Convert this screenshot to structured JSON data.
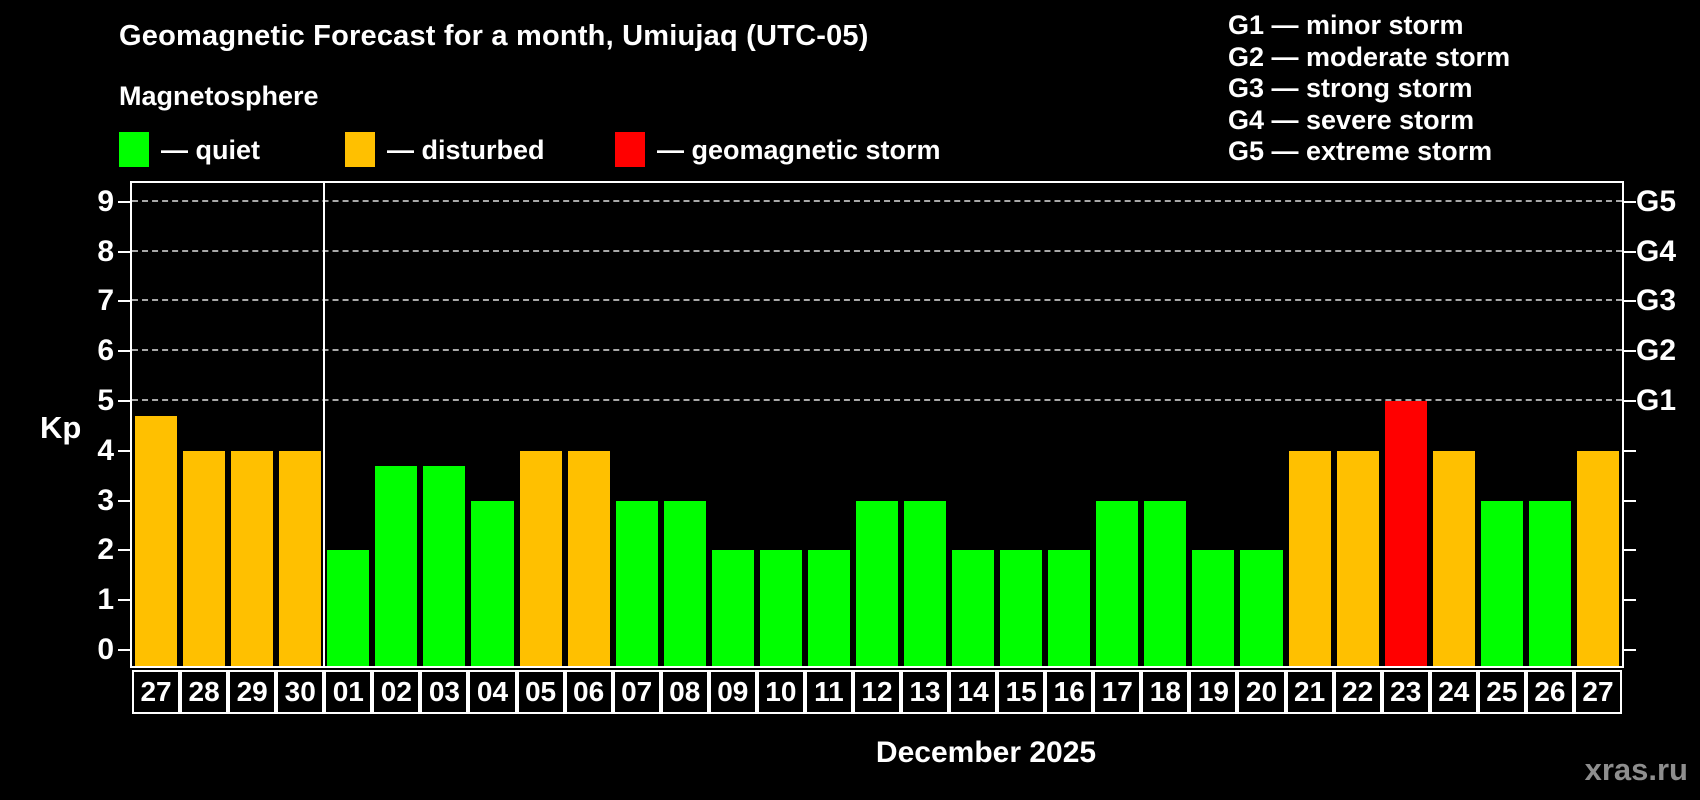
{
  "title": "Geomagnetic Forecast for a month, Umiujaq (UTC-05)",
  "subtitle": "Magnetosphere",
  "legend": [
    {
      "key": "quiet",
      "label": "— quiet"
    },
    {
      "key": "disturbed",
      "label": "— disturbed"
    },
    {
      "key": "storm",
      "label": "— geomagnetic storm"
    }
  ],
  "g_legend": [
    "G1 — minor storm",
    "G2 — moderate storm",
    "G3 — strong storm",
    "G4 — severe storm",
    "G5 — extreme storm"
  ],
  "colors": {
    "quiet": "#00ff00",
    "disturbed": "#ffc000",
    "storm": "#ff0000",
    "grid": "#a8a8a8",
    "axis": "#ffffff",
    "watermark": "#8e8e8e",
    "background": "#000000"
  },
  "watermark": "xras.ru",
  "chart_data": {
    "type": "bar",
    "title": "Geomagnetic Forecast for a month, Umiujaq (UTC-05)",
    "xlabel": "December 2025",
    "ylabel": "Kp",
    "ylim": [
      0,
      9
    ],
    "grid": "dashed horizontal at Kp 5-9 only",
    "y_ticks": [
      0,
      1,
      2,
      3,
      4,
      5,
      6,
      7,
      8,
      9
    ],
    "right_axis_labels": [
      {
        "kp": 5,
        "label": "G1"
      },
      {
        "kp": 6,
        "label": "G2"
      },
      {
        "kp": 7,
        "label": "G3"
      },
      {
        "kp": 8,
        "label": "G4"
      },
      {
        "kp": 9,
        "label": "G5"
      }
    ],
    "month_boundary_after_index": 3,
    "categories": [
      "27",
      "28",
      "29",
      "30",
      "01",
      "02",
      "03",
      "04",
      "05",
      "06",
      "07",
      "08",
      "09",
      "10",
      "11",
      "12",
      "13",
      "14",
      "15",
      "16",
      "17",
      "18",
      "19",
      "20",
      "21",
      "22",
      "23",
      "24",
      "25",
      "26",
      "27"
    ],
    "values": [
      4.7,
      4,
      4,
      4,
      2,
      3.7,
      3.7,
      3,
      4,
      4,
      3,
      3,
      2,
      2,
      2,
      3,
      3,
      2,
      2,
      2,
      3,
      3,
      2,
      2,
      4,
      4,
      5,
      4,
      3,
      3,
      4
    ],
    "statuses": [
      "disturbed",
      "disturbed",
      "disturbed",
      "disturbed",
      "quiet",
      "quiet",
      "quiet",
      "quiet",
      "disturbed",
      "disturbed",
      "quiet",
      "quiet",
      "quiet",
      "quiet",
      "quiet",
      "quiet",
      "quiet",
      "quiet",
      "quiet",
      "quiet",
      "quiet",
      "quiet",
      "quiet",
      "quiet",
      "disturbed",
      "disturbed",
      "storm",
      "disturbed",
      "quiet",
      "quiet",
      "disturbed"
    ]
  }
}
